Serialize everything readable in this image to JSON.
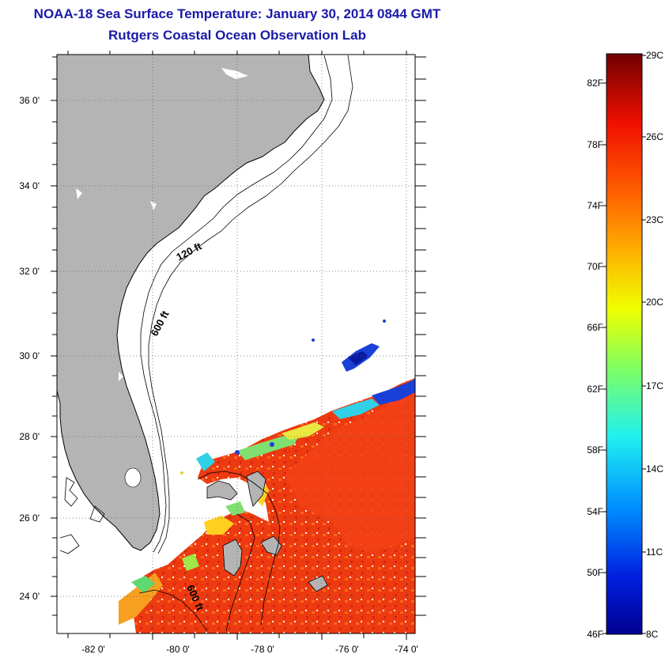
{
  "title": "NOAA-18 Sea Surface Temperature:  January 30, 2014 0844 GMT",
  "subtitle": "Rutgers Coastal Ocean Observation Lab",
  "map": {
    "lat_labels": [
      "36 0'",
      "34 0'",
      "32 0'",
      "30 0'",
      "28 0'",
      "26 0'",
      "24 0'"
    ],
    "lon_labels": [
      "-82 0'",
      "-80 0'",
      "-78 0'",
      "-76 0'",
      "-74 0'"
    ],
    "contour_labels": [
      "120 ft",
      "600 ft",
      "600 ft"
    ],
    "colors": {
      "land": "#b4b4b4",
      "warm_water": "#f44a10",
      "hot_water": "#e52a0e",
      "cool_water": "#2fd0e8",
      "cold_water": "#1a40d8"
    }
  },
  "colorbar": {
    "f_labels": [
      "82F",
      "78F",
      "74F",
      "70F",
      "66F",
      "62F",
      "58F",
      "54F",
      "50F",
      "46F"
    ],
    "c_labels": [
      "29C",
      "26C",
      "23C",
      "20C",
      "17C",
      "14C",
      "11C",
      "8C"
    ],
    "colors": [
      "#7a0000",
      "#c80000",
      "#ff2000",
      "#ff7a00",
      "#ffe600",
      "#a8ff2a",
      "#20ffd0",
      "#00a8ff",
      "#0030ff",
      "#000090"
    ]
  }
}
